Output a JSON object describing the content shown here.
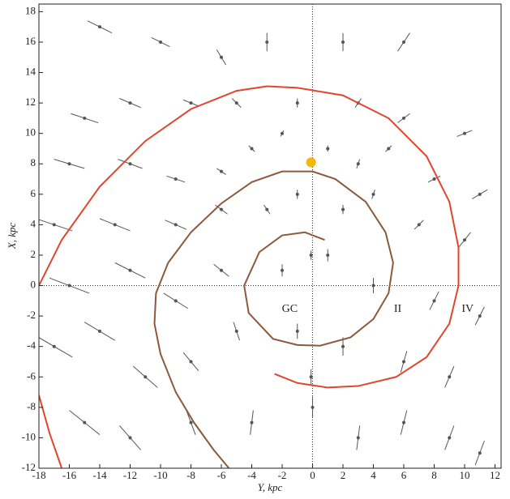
{
  "chart_data": {
    "type": "scatter",
    "x_label": "Y, kpc",
    "y_label": "X, kpc",
    "xlim": [
      -18,
      12.4
    ],
    "ylim": [
      -12,
      18.5
    ],
    "xticks": [
      -18,
      -16,
      -14,
      -12,
      -10,
      -8,
      -6,
      -4,
      -2,
      0,
      2,
      4,
      6,
      8,
      10,
      12
    ],
    "yticks": [
      -12,
      -10,
      -8,
      -6,
      -4,
      -2,
      0,
      2,
      4,
      6,
      8,
      10,
      12,
      14,
      16,
      18
    ],
    "zero_lines": true,
    "points": {
      "color": "#555555",
      "x": [
        -14,
        -10,
        -6,
        -3,
        2,
        6,
        -15,
        -12,
        -8,
        -5,
        -1,
        3,
        6,
        10,
        -16,
        -12,
        -9,
        -6,
        -4,
        -2,
        1,
        3,
        5,
        8,
        11,
        -17,
        -13,
        -9,
        -6,
        -3,
        -1,
        2,
        4,
        7,
        10,
        -16,
        -12,
        -9,
        -6,
        -2,
        1,
        4,
        8,
        11,
        -17,
        -14,
        -11,
        -8,
        -5,
        -1,
        2,
        6,
        9,
        -15,
        -12,
        -8,
        -4,
        0,
        3,
        6,
        9,
        11,
        -0.1,
        -0.1
      ],
      "y": [
        17,
        16,
        15,
        16,
        16,
        16,
        11,
        12,
        12,
        12,
        12,
        12,
        11,
        10,
        8,
        8,
        7,
        7.5,
        9,
        10,
        9,
        8,
        9,
        7,
        6,
        4,
        4,
        4,
        5,
        5,
        6,
        5,
        6,
        4,
        3,
        0,
        1,
        -1,
        1,
        1,
        2,
        0,
        -1,
        -2,
        -4,
        -3,
        -6,
        -5,
        -3,
        -3,
        -4,
        -5,
        -6,
        -9,
        -10,
        -9,
        -9,
        -8,
        -10,
        -9,
        -10,
        -11,
        -6,
        2
      ],
      "dx": [
        0.8,
        0.6,
        0.3,
        0,
        0,
        0.4,
        0.9,
        0.7,
        0.5,
        0.3,
        0,
        0.2,
        0.4,
        0.5,
        1,
        0.8,
        0.6,
        0.3,
        0.2,
        0.1,
        0,
        0.1,
        0.2,
        0.4,
        0.5,
        1.2,
        1,
        0.7,
        0.4,
        0.2,
        0,
        0,
        0.1,
        0.3,
        0.4,
        1.3,
        1,
        0.8,
        0.5,
        0,
        0,
        0,
        0.3,
        0.3,
        1.2,
        1,
        0.8,
        0.5,
        0.2,
        0,
        0,
        0.2,
        0.3,
        1,
        0.7,
        0.3,
        0.1,
        0,
        0.1,
        0.2,
        0.3,
        0.3,
        0,
        0
      ],
      "dy": [
        -0.4,
        -0.3,
        -0.5,
        -0.6,
        0.6,
        0.6,
        -0.3,
        -0.3,
        -0.2,
        -0.3,
        0.3,
        0.3,
        0.3,
        0.2,
        -0.3,
        -0.3,
        -0.2,
        -0.2,
        -0.2,
        0.2,
        0.2,
        0.3,
        0.2,
        0.2,
        0.3,
        -0.4,
        -0.4,
        -0.3,
        -0.3,
        -0.3,
        0.3,
        0.3,
        0.3,
        0.3,
        0.5,
        -0.5,
        -0.5,
        -0.5,
        -0.4,
        0.4,
        0.4,
        0.5,
        0.6,
        0.6,
        -0.7,
        -0.6,
        -0.7,
        -0.6,
        -0.6,
        0.5,
        0.6,
        0.7,
        0.7,
        -0.8,
        -0.8,
        -0.8,
        0.8,
        0.7,
        0.8,
        0.8,
        0.8,
        0.8,
        0.5,
        0.3
      ]
    },
    "series": [
      {
        "color": "#e0462e",
        "x": [
          -18,
          -16.5,
          -14,
          -11,
          -8,
          -5,
          -3,
          -1,
          2,
          5,
          7.5,
          9,
          9.6,
          9.6,
          9,
          7.5,
          5.5,
          3,
          1,
          -1,
          -2.5,
          null,
          -18,
          -17.3,
          -16.5
        ],
        "y": [
          0,
          3,
          6.5,
          9.5,
          11.6,
          12.8,
          13.1,
          13,
          12.5,
          11,
          8.5,
          5.5,
          2.5,
          0,
          -2.5,
          -4.7,
          -6,
          -6.6,
          -6.7,
          -6.4,
          -5.8,
          null,
          -7.2,
          -9.7,
          -12
        ]
      },
      {
        "color": "#8b5a3c",
        "x": [
          0.8,
          -0.5,
          -2,
          -3.5,
          -4.5,
          -4.2,
          -2.6,
          -1,
          0.5,
          2.5,
          4,
          5,
          5.3,
          4.8,
          3.5,
          1.5,
          0,
          -2,
          -4,
          -6,
          -8,
          -9.5,
          -10.3,
          -10.4,
          -10,
          -9,
          -7.8,
          -6.5,
          -5.5
        ],
        "y": [
          3,
          3.5,
          3.3,
          2.2,
          0,
          -1.8,
          -3.5,
          -3.9,
          -3.95,
          -3.4,
          -2.2,
          -0.5,
          1.5,
          3.5,
          5.5,
          7,
          7.5,
          7.5,
          6.8,
          5.4,
          3.5,
          1.5,
          -0.5,
          -2.5,
          -4.5,
          -7,
          -9,
          -10.8,
          -12
        ]
      }
    ],
    "sun": {
      "x": -0.1,
      "y": 8.1,
      "color": "#f5b800"
    },
    "annotations": [
      {
        "text": "GC",
        "x": -1.5,
        "y": -0.8
      },
      {
        "text": "II",
        "x": 5.6,
        "y": -0.8
      },
      {
        "text": "IV",
        "x": 10.2,
        "y": -0.8
      }
    ]
  }
}
